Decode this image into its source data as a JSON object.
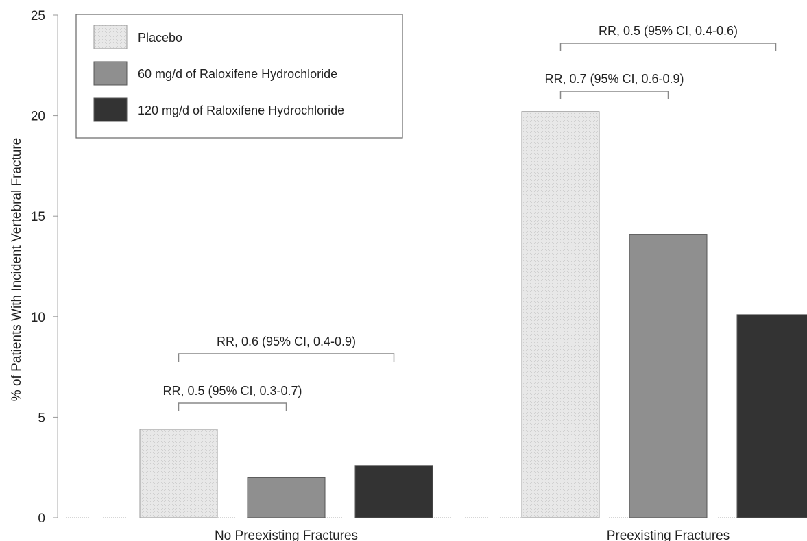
{
  "chart_data": {
    "type": "bar",
    "categories": [
      "No Preexisting Fractures",
      "Preexisting Fractures"
    ],
    "series": [
      {
        "name": "Placebo",
        "values": [
          4.4,
          20.2
        ],
        "color": "#e6e6e6"
      },
      {
        "name": "60 mg/d of Raloxifene Hydrochloride",
        "values": [
          2.0,
          14.1
        ],
        "color": "#8f8f8f"
      },
      {
        "name": "120 mg/d of Raloxifene Hydrochloride",
        "values": [
          2.6,
          10.1
        ],
        "color": "#333333"
      }
    ],
    "ylabel": "% of Patients With Incident Vertebral Fracture",
    "xlabel": "",
    "ylim": [
      0,
      25
    ],
    "yticks": [
      0,
      5,
      10,
      15,
      20,
      25
    ],
    "grid": false,
    "legend_position": "top-left",
    "annotations": [
      {
        "category": 0,
        "from_series": 0,
        "to_series": 1,
        "text": "RR, 0.5 (95% CI, 0.3-0.7)"
      },
      {
        "category": 0,
        "from_series": 0,
        "to_series": 2,
        "text": "RR, 0.6 (95% CI, 0.4-0.9)"
      },
      {
        "category": 1,
        "from_series": 0,
        "to_series": 1,
        "text": "RR, 0.7 (95% CI, 0.6-0.9)"
      },
      {
        "category": 1,
        "from_series": 0,
        "to_series": 2,
        "text": "RR, 0.5 (95% CI, 0.4-0.6)"
      }
    ]
  }
}
